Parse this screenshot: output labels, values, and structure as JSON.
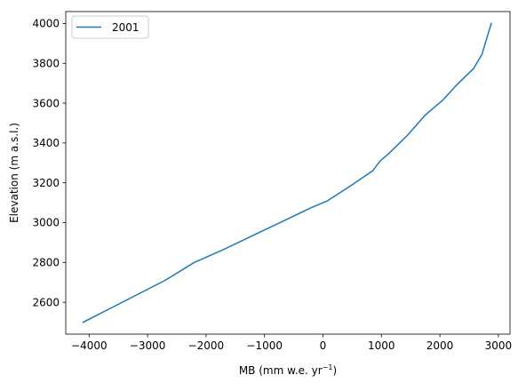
{
  "chart_data": {
    "type": "line",
    "xlabel_main": "MB (mm w.e. yr",
    "xlabel_sup": "−1",
    "xlabel_close": ")",
    "ylabel": "Elevation (m a.s.l.)",
    "xlim": [
      -4400,
      3200
    ],
    "ylim": [
      2440,
      4060
    ],
    "xticks": [
      -4000,
      -3000,
      -2000,
      -1000,
      0,
      1000,
      2000,
      3000
    ],
    "xtick_labels": [
      "−4000",
      "−3000",
      "−2000",
      "−1000",
      "0",
      "1000",
      "2000",
      "3000"
    ],
    "yticks": [
      2600,
      2800,
      3000,
      3200,
      3400,
      3600,
      3800,
      4000
    ],
    "ytick_labels": [
      "2600",
      "2800",
      "3000",
      "3200",
      "3400",
      "3600",
      "3800",
      "4000"
    ],
    "grid": false,
    "legend": "upper left",
    "series": [
      {
        "name": "2001",
        "color": "#1f77b4",
        "x": [
          -4100,
          -2700,
          -2200,
          -1700,
          -1200,
          -700,
          -200,
          80,
          500,
          850,
          980,
          1120,
          1450,
          1750,
          2050,
          2300,
          2580,
          2720,
          2880
        ],
        "y": [
          2500,
          2710,
          2800,
          2865,
          2935,
          3005,
          3075,
          3110,
          3190,
          3260,
          3310,
          3345,
          3440,
          3540,
          3615,
          3695,
          3775,
          3845,
          4000
        ]
      }
    ]
  }
}
